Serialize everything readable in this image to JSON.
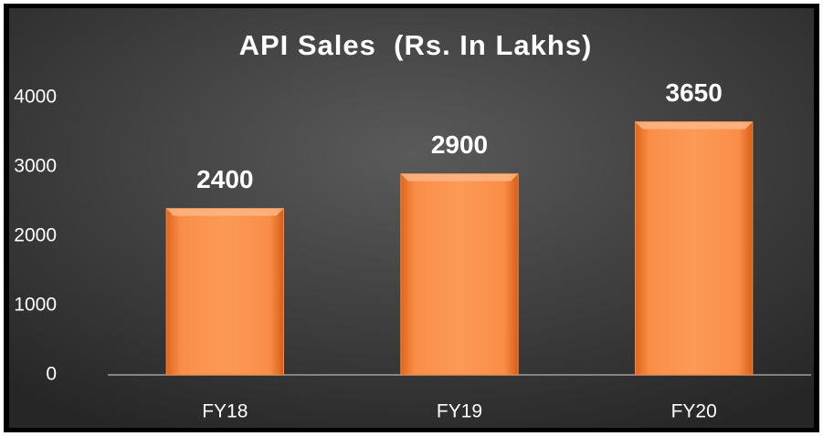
{
  "chart_data": {
    "type": "bar",
    "title": "API Sales  (Rs. In Lakhs)",
    "categories": [
      "FY18",
      "FY19",
      "FY20"
    ],
    "values": [
      2400,
      2900,
      3650
    ],
    "color": "#f58a3c",
    "ylim": [
      0,
      4000
    ],
    "yticks": [
      0,
      1000,
      2000,
      3000,
      4000
    ],
    "grid": false
  }
}
